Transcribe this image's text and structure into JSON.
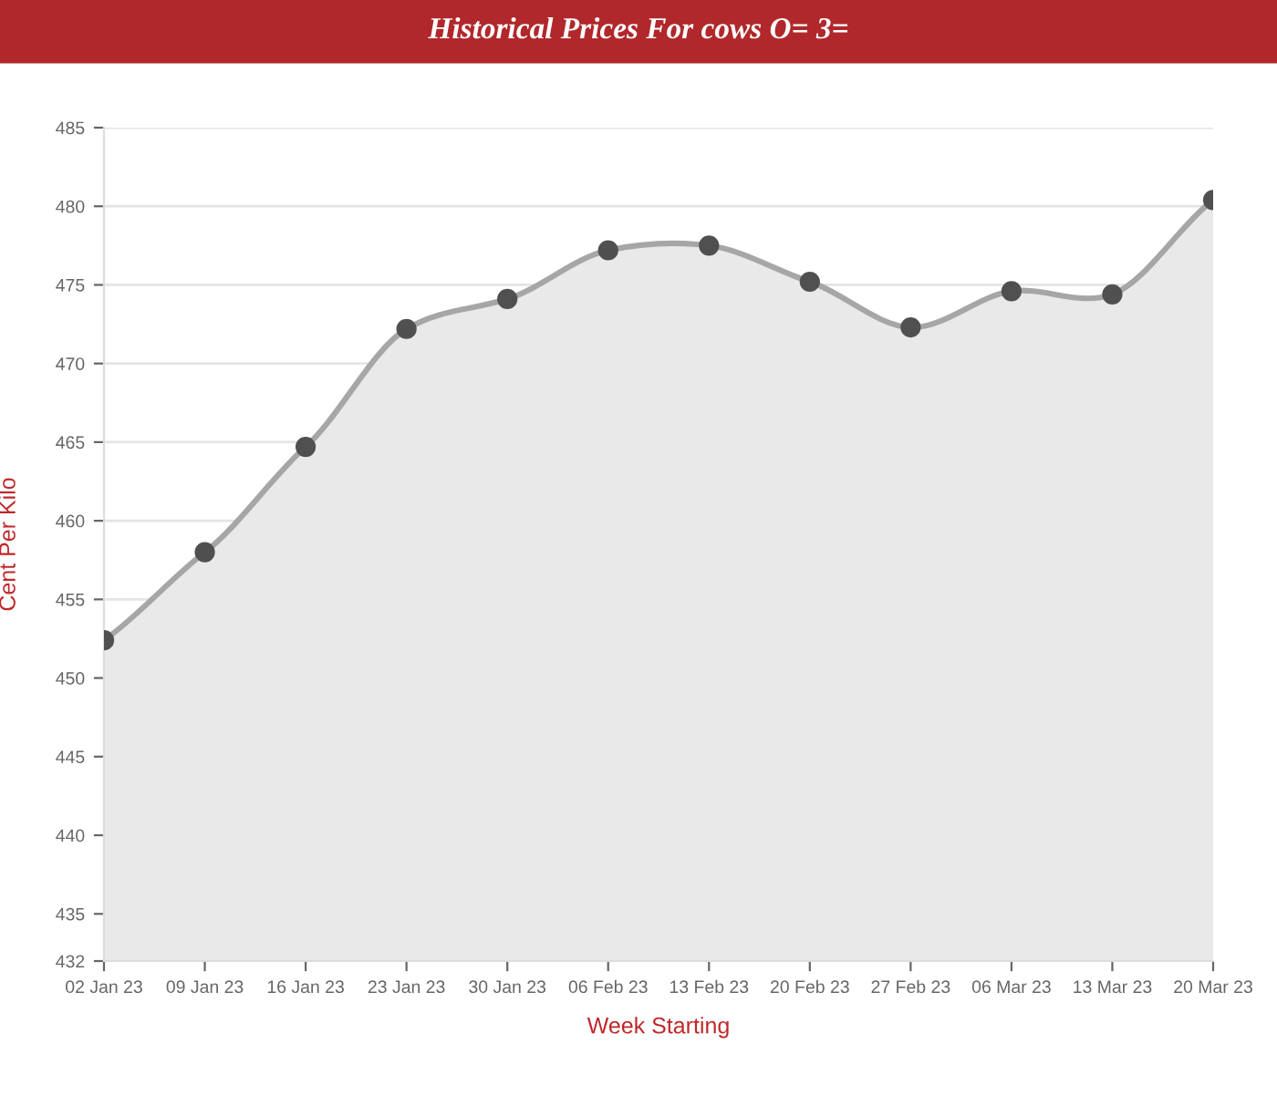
{
  "chart_data": {
    "type": "area",
    "title": "Historical Prices For cows O= 3=",
    "xlabel": "Week Starting",
    "ylabel": "Cent Per Kilo",
    "categories": [
      "02 Jan 23",
      "09 Jan 23",
      "16 Jan 23",
      "23 Jan 23",
      "30 Jan 23",
      "06 Feb 23",
      "13 Feb 23",
      "20 Feb 23",
      "27 Feb 23",
      "06 Mar 23",
      "13 Mar 23",
      "20 Mar 23"
    ],
    "series": [
      {
        "color": "#a6a6a6",
        "values": [
          452.4,
          458.0,
          464.7,
          472.2,
          474.1,
          477.2,
          477.5,
          475.2,
          472.3,
          474.6,
          474.4,
          480.4
        ]
      }
    ],
    "ylim": [
      432,
      485
    ],
    "yticks": [
      432,
      435,
      440,
      445,
      450,
      455,
      460,
      465,
      470,
      475,
      480,
      485
    ],
    "grid": true,
    "marker": "circle",
    "line_style": "solid"
  }
}
